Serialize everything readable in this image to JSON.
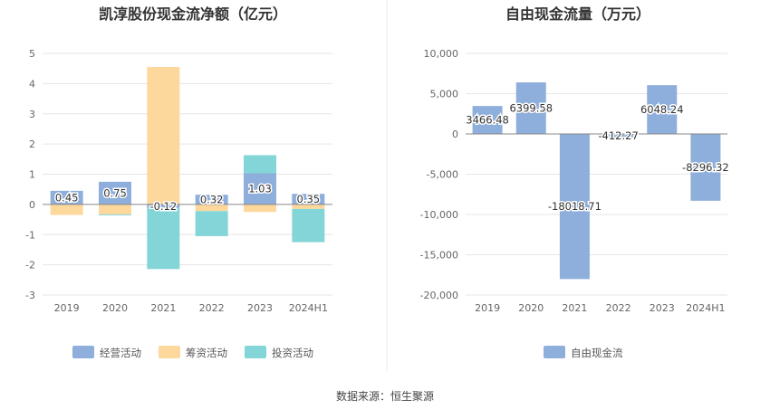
{
  "footer": {
    "source": "数据来源：恒生聚源"
  },
  "chart_data": [
    {
      "type": "bar",
      "stacked": true,
      "title": "凯淳股份现金流净额（亿元）",
      "categories": [
        "2019",
        "2020",
        "2021",
        "2022",
        "2023",
        "2024H1"
      ],
      "ylim": [
        -3,
        5
      ],
      "yticks": [
        -3,
        -2,
        -1,
        0,
        1,
        2,
        3,
        4,
        5
      ],
      "grid": true,
      "legend": "bottom",
      "series": [
        {
          "name": "经营活动",
          "color": "#8eaedb",
          "values": [
            0.45,
            0.75,
            -0.12,
            0.32,
            1.03,
            0.35
          ],
          "labels": [
            "0.45",
            "0.75",
            "-0.12",
            "0.32",
            "1.03",
            "0.35"
          ]
        },
        {
          "name": "筹资活动",
          "color": "#fdd89c",
          "values": [
            -0.35,
            -0.33,
            4.55,
            -0.22,
            -0.25,
            -0.15
          ]
        },
        {
          "name": "投资活动",
          "color": "#84d5d8",
          "values": [
            0.0,
            -0.03,
            -2.02,
            -0.83,
            0.6,
            -1.1
          ]
        }
      ]
    },
    {
      "type": "bar",
      "title": "自由现金流量（万元）",
      "categories": [
        "2019",
        "2020",
        "2021",
        "2022",
        "2023",
        "2024H1"
      ],
      "ylim": [
        -20000,
        10000
      ],
      "yticks": [
        -20000,
        -15000,
        -10000,
        -5000,
        0,
        5000,
        10000
      ],
      "ytick_labels": [
        "-20,000",
        "-15,000",
        "-10,000",
        "-5,000",
        "0",
        "5,000",
        "10,000"
      ],
      "grid": true,
      "legend": "bottom",
      "series": [
        {
          "name": "自由现金流",
          "color": "#8eaedb",
          "values": [
            3466.48,
            6399.58,
            -18018.71,
            -412.27,
            6048.24,
            -8296.32
          ],
          "labels": [
            "3466.48",
            "6399.58",
            "-18018.71",
            "-412.27",
            "6048.24",
            "-8296.32"
          ]
        }
      ]
    }
  ]
}
